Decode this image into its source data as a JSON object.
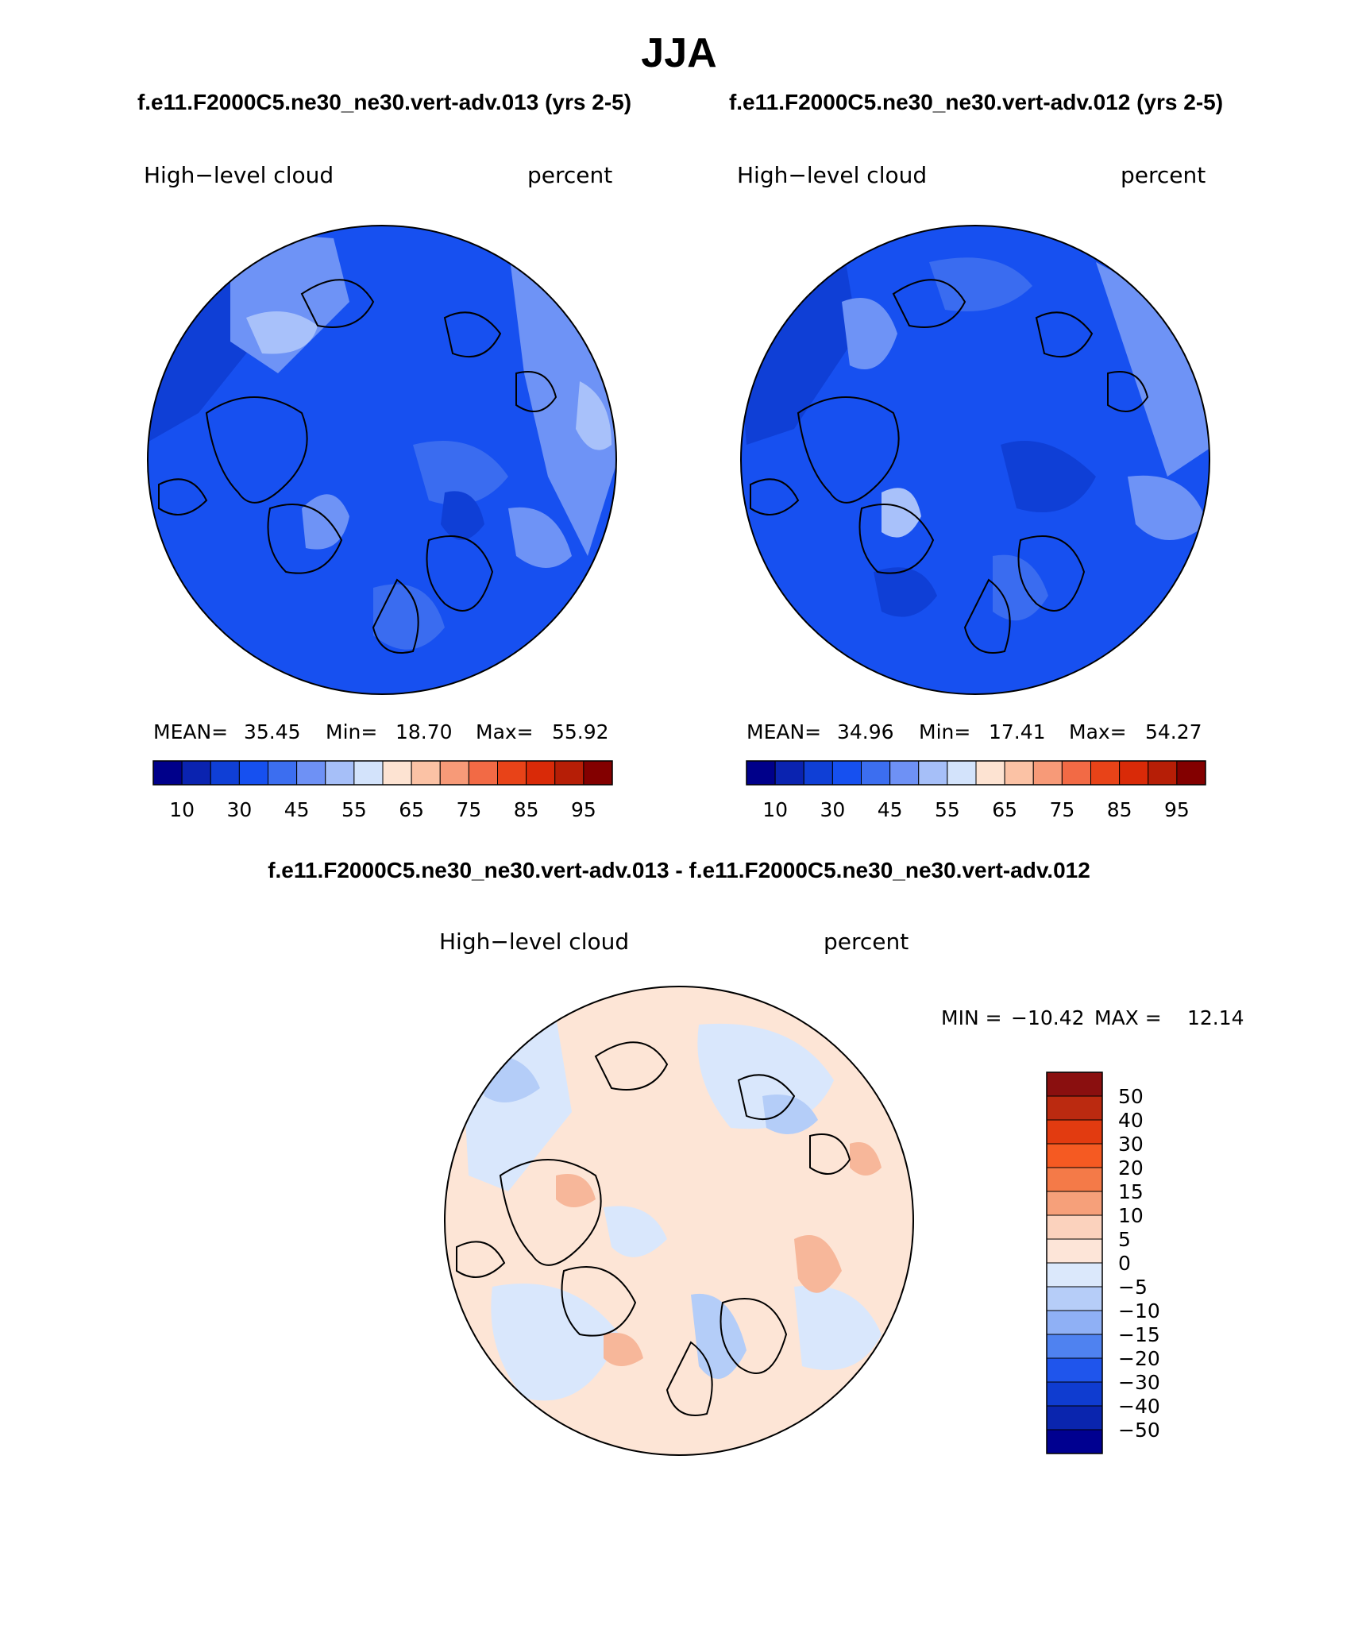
{
  "header": {
    "season": "JJA",
    "case_a_title": "f.e11.F2000C5.ne30_ne30.vert-adv.013 (yrs 2-5)",
    "case_b_title": "f.e11.F2000C5.ne30_ne30.vert-adv.012 (yrs 2-5)",
    "diff_title": "f.e11.F2000C5.ne30_ne30.vert-adv.013 - f.e11.F2000C5.ne30_ne30.vert-adv.012"
  },
  "panels": [
    {
      "variable": "High−level cloud",
      "units": "percent",
      "stats": {
        "mean_label": "MEAN=",
        "mean": "35.45",
        "min_label": "Min=",
        "min": "18.70",
        "max_label": "Max=",
        "max": "55.92"
      }
    },
    {
      "variable": "High−level cloud",
      "units": "percent",
      "stats": {
        "mean_label": "MEAN=",
        "mean": "34.96",
        "min_label": "Min=",
        "min": "17.41",
        "max_label": "Max=",
        "max": "54.27"
      }
    }
  ],
  "diff_panel": {
    "variable": "High−level cloud",
    "units": "percent",
    "min_label": "MIN =",
    "min": "−10.42",
    "max_label": "MAX =",
    "max": "12.14"
  },
  "colorbar_top": {
    "labels": [
      "10",
      "30",
      "45",
      "55",
      "65",
      "75",
      "85",
      "95"
    ],
    "colors": [
      "#00008a",
      "#0a23b0",
      "#0f3fd6",
      "#1650f0",
      "#3c6ef0",
      "#6e91f5",
      "#a6bff8",
      "#d3e3fb",
      "#fde3d2",
      "#fbc2a5",
      "#f79a78",
      "#f26a45",
      "#e84318",
      "#d92a08",
      "#b61e06",
      "#830000"
    ]
  },
  "colorbar_diff": {
    "labels": [
      "50",
      "40",
      "30",
      "20",
      "15",
      "10",
      "5",
      "0",
      "−5",
      "−10",
      "−15",
      "−20",
      "−30",
      "−40",
      "−50"
    ],
    "colors": [
      "#8a0f0f",
      "#bb2a10",
      "#e23b10",
      "#f55a22",
      "#f47a48",
      "#f6a07a",
      "#fbd2bd",
      "#fde5d8",
      "#dbe8fb",
      "#b6cdf8",
      "#8fb0f5",
      "#4f82f0",
      "#1f55ec",
      "#0f3cd0",
      "#0a25ae",
      "#000090"
    ]
  },
  "map_colors": {
    "base_blue": "#1750f0",
    "mid_blue": "#3a6cf0",
    "light_blue": "#6e93f6",
    "pale_blue": "#a8c1fa",
    "dark_blue": "#0f3fd6",
    "diff_base": "#fde5d6",
    "diff_pale_blue": "#d9e7fc",
    "diff_blue": "#b4cdf8",
    "diff_orange": "#f7b79a"
  }
}
